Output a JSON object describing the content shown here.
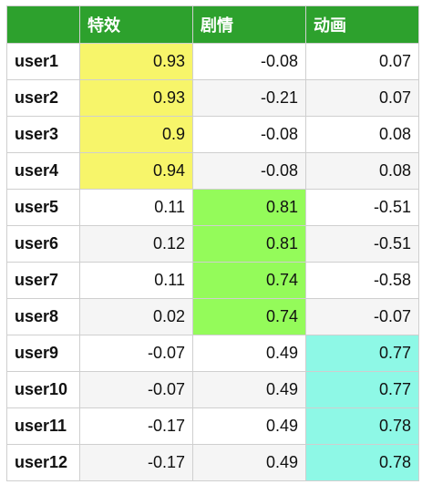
{
  "table": {
    "columns": [
      "",
      "特效",
      "剧情",
      "动画"
    ],
    "rows": [
      {
        "user": "user1",
        "values": [
          "0.93",
          "-0.08",
          "0.07"
        ],
        "highlight": 0
      },
      {
        "user": "user2",
        "values": [
          "0.93",
          "-0.21",
          "0.07"
        ],
        "highlight": 0
      },
      {
        "user": "user3",
        "values": [
          "0.9",
          "-0.08",
          "0.08"
        ],
        "highlight": 0
      },
      {
        "user": "user4",
        "values": [
          "0.94",
          "-0.08",
          "0.08"
        ],
        "highlight": 0
      },
      {
        "user": "user5",
        "values": [
          "0.11",
          "0.81",
          "-0.51"
        ],
        "highlight": 1
      },
      {
        "user": "user6",
        "values": [
          "0.12",
          "0.81",
          "-0.51"
        ],
        "highlight": 1
      },
      {
        "user": "user7",
        "values": [
          "0.11",
          "0.74",
          "-0.58"
        ],
        "highlight": 1
      },
      {
        "user": "user8",
        "values": [
          "0.02",
          "0.74",
          "-0.07"
        ],
        "highlight": 1
      },
      {
        "user": "user9",
        "values": [
          "-0.07",
          "0.49",
          "0.77"
        ],
        "highlight": 2
      },
      {
        "user": "user10",
        "values": [
          "-0.07",
          "0.49",
          "0.77"
        ],
        "highlight": 2
      },
      {
        "user": "user11",
        "values": [
          "-0.17",
          "0.49",
          "0.78"
        ],
        "highlight": 2
      },
      {
        "user": "user12",
        "values": [
          "-0.17",
          "0.49",
          "0.78"
        ],
        "highlight": 2
      }
    ]
  },
  "colors": {
    "header_bg": "#2da12d",
    "highlight_col1": "#f7f56a",
    "highlight_col2": "#94fb5a",
    "highlight_col3": "#8ef8e6"
  }
}
